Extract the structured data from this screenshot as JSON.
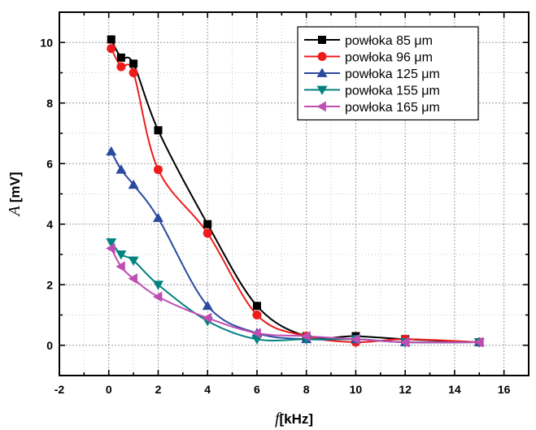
{
  "chart_data": {
    "type": "line",
    "title": "",
    "xlabel_var": "f",
    "xlabel_unit": "[kHz]",
    "ylabel_var": "A",
    "ylabel_unit": "[mV]",
    "xlim": [
      -2,
      17
    ],
    "ylim": [
      -1,
      11
    ],
    "xticks": [
      -2,
      0,
      2,
      4,
      6,
      8,
      10,
      12,
      14,
      16
    ],
    "yticks": [
      0,
      2,
      4,
      6,
      8,
      10
    ],
    "grid": true,
    "legend_position": "top-right",
    "series": [
      {
        "name": "powłoka   85 μm",
        "color": "#000000",
        "marker": "square",
        "x": [
          0.1,
          0.5,
          1,
          2,
          4,
          6,
          8,
          10,
          12,
          15
        ],
        "y": [
          10.1,
          9.5,
          9.3,
          7.1,
          4.0,
          1.3,
          0.3,
          0.3,
          0.2,
          0.1
        ]
      },
      {
        "name": "powłoka   96 μm",
        "color": "#ee1c1c",
        "marker": "circle",
        "x": [
          0.1,
          0.5,
          1,
          2,
          4,
          6,
          8,
          10,
          12,
          15
        ],
        "y": [
          9.8,
          9.2,
          9.0,
          5.8,
          3.7,
          1.0,
          0.3,
          0.1,
          0.2,
          0.1
        ]
      },
      {
        "name": "powłoka 125 μm",
        "color": "#2a4a9f",
        "marker": "triangle-up",
        "x": [
          0.1,
          0.5,
          1,
          2,
          4,
          6,
          8,
          10,
          12,
          15
        ],
        "y": [
          6.4,
          5.8,
          5.3,
          4.2,
          1.3,
          0.4,
          0.2,
          0.2,
          0.1,
          0.1
        ]
      },
      {
        "name": "powłoka 155 μm",
        "color": "#00827f",
        "marker": "triangle-down",
        "x": [
          0.1,
          0.5,
          1,
          2,
          4,
          6,
          8,
          10,
          12,
          15
        ],
        "y": [
          3.4,
          3.0,
          2.8,
          2.0,
          0.8,
          0.2,
          0.2,
          0.2,
          0.1,
          0.1
        ]
      },
      {
        "name": "powłoka 165 μm",
        "color": "#c04eb2",
        "marker": "triangle-left",
        "x": [
          0.1,
          0.5,
          1,
          2,
          4,
          6,
          8,
          10,
          12,
          15
        ],
        "y": [
          3.2,
          2.6,
          2.2,
          1.6,
          0.9,
          0.4,
          0.3,
          0.2,
          0.1,
          0.1
        ]
      }
    ]
  }
}
